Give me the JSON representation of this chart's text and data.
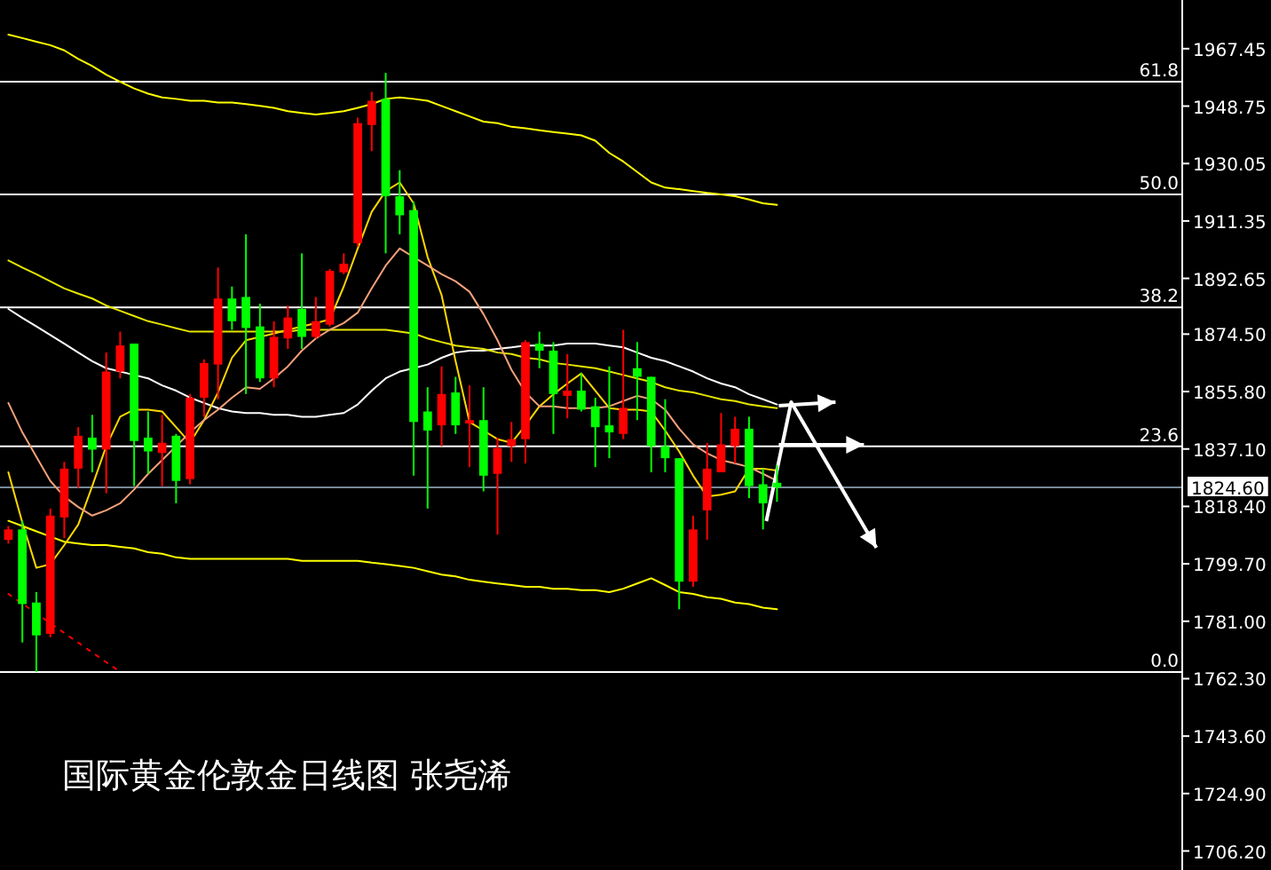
{
  "chart_data": {
    "type": "candlestick",
    "title": "国际黄金伦敦金日线图 张尧浠",
    "categories": [
      null,
      null,
      null,
      null,
      null,
      null,
      null,
      null,
      null,
      null,
      null,
      null,
      null,
      null,
      null,
      null,
      null,
      null,
      null,
      null,
      null,
      null,
      null,
      null,
      null,
      null,
      null,
      null,
      null,
      null,
      null,
      null,
      null,
      null,
      null,
      null,
      null,
      null,
      null,
      null,
      null,
      null,
      null,
      null,
      null,
      null,
      null,
      null,
      null,
      null,
      null,
      null,
      null,
      null,
      null,
      null
    ],
    "ohlc": [
      [
        1807.5,
        1812.0,
        1806.3,
        1810.9
      ],
      [
        1810.9,
        1813.7,
        1774.1,
        1786.6
      ],
      [
        1787.1,
        1790.5,
        1764.5,
        1776.4
      ],
      [
        1776.9,
        1817.7,
        1775.8,
        1815.4
      ],
      [
        1814.8,
        1832.9,
        1808.0,
        1830.7
      ],
      [
        1830.7,
        1844.2,
        1824.4,
        1841.4
      ],
      [
        1840.8,
        1848.2,
        1829.5,
        1836.9
      ],
      [
        1836.9,
        1868.5,
        1822.7,
        1862.3
      ],
      [
        1862.3,
        1875.3,
        1860.1,
        1870.8
      ],
      [
        1871.4,
        1871.4,
        1825.0,
        1839.7
      ],
      [
        1840.8,
        1849.3,
        1829.0,
        1836.3
      ],
      [
        1835.8,
        1848.2,
        1825.0,
        1839.1
      ],
      [
        1841.4,
        1842.0,
        1819.4,
        1826.7
      ],
      [
        1827.3,
        1855.0,
        1825.6,
        1853.8
      ],
      [
        1853.8,
        1866.3,
        1847.6,
        1865.1
      ],
      [
        1864.6,
        1896.2,
        1853.3,
        1886.1
      ],
      [
        1886.1,
        1890.0,
        1875.9,
        1878.7
      ],
      [
        1886.6,
        1907.0,
        1855.0,
        1876.5
      ],
      [
        1877.0,
        1884.4,
        1858.9,
        1860.1
      ],
      [
        1860.1,
        1878.7,
        1857.2,
        1873.6
      ],
      [
        1873.1,
        1883.8,
        1869.7,
        1879.9
      ],
      [
        1882.7,
        1900.8,
        1869.7,
        1873.6
      ],
      [
        1873.6,
        1886.6,
        1873.1,
        1878.7
      ],
      [
        1877.6,
        1895.7,
        1877.0,
        1895.1
      ],
      [
        1894.6,
        1900.8,
        1894.0,
        1897.4
      ],
      [
        1904.1,
        1945.0,
        1903.0,
        1943.2
      ],
      [
        1942.6,
        1953.4,
        1934.1,
        1950.5
      ],
      [
        1951.1,
        1959.6,
        1900.8,
        1919.4
      ],
      [
        1919.4,
        1927.9,
        1907.0,
        1913.2
      ],
      [
        1914.9,
        1917.7,
        1828.4,
        1845.9
      ],
      [
        1849.3,
        1857.2,
        1817.7,
        1843.1
      ],
      [
        1844.8,
        1864.0,
        1838.0,
        1855.0
      ],
      [
        1855.5,
        1860.6,
        1842.0,
        1844.8
      ],
      [
        1845.4,
        1857.8,
        1831.2,
        1846.5
      ],
      [
        1846.5,
        1857.2,
        1823.3,
        1828.4
      ],
      [
        1829.0,
        1840.8,
        1809.2,
        1837.4
      ],
      [
        1838.0,
        1845.9,
        1832.9,
        1840.3
      ],
      [
        1840.3,
        1872.5,
        1832.4,
        1871.9
      ],
      [
        1871.4,
        1875.3,
        1863.4,
        1869.1
      ],
      [
        1869.1,
        1871.9,
        1842.0,
        1855.0
      ],
      [
        1854.4,
        1868.0,
        1847.1,
        1856.1
      ],
      [
        1856.1,
        1861.8,
        1849.3,
        1849.9
      ],
      [
        1851.0,
        1853.8,
        1831.2,
        1844.2
      ],
      [
        1844.8,
        1864.0,
        1834.1,
        1842.5
      ],
      [
        1842.0,
        1875.9,
        1840.3,
        1850.5
      ],
      [
        1863.4,
        1871.9,
        1846.5,
        1860.6
      ],
      [
        1860.6,
        1860.6,
        1829.5,
        1838.0
      ],
      [
        1838.0,
        1853.3,
        1829.5,
        1834.1
      ],
      [
        1834.1,
        1834.1,
        1784.9,
        1793.9
      ],
      [
        1793.9,
        1815.4,
        1792.2,
        1810.9
      ],
      [
        1817.1,
        1839.1,
        1807.5,
        1830.7
      ],
      [
        1829.5,
        1848.8,
        1829.5,
        1838.6
      ],
      [
        1838.0,
        1847.6,
        1832.4,
        1843.7
      ],
      [
        1843.7,
        1847.6,
        1821.1,
        1825.0
      ],
      [
        1825.6,
        1830.7,
        1810.9,
        1819.4
      ],
      [
        1826.1,
        1831.8,
        1819.9,
        1824.6
      ]
    ],
    "colors": [
      "#ff0000",
      "#00ff00",
      "#00ff00",
      "#ff0000",
      "#ff0000",
      "#ff0000",
      "#00ff00",
      "#ff0000",
      "#ff0000",
      "#00ff00",
      "#00ff00",
      "#ff0000",
      "#00ff00",
      "#ff0000",
      "#ff0000",
      "#ff0000",
      "#00ff00",
      "#00ff00",
      "#00ff00",
      "#ff0000",
      "#ff0000",
      "#00ff00",
      "#ff0000",
      "#ff0000",
      "#ff0000",
      "#ff0000",
      "#ff0000",
      "#00ff00",
      "#00ff00",
      "#00ff00",
      "#00ff00",
      "#ff0000",
      "#00ff00",
      "#ff0000",
      "#00ff00",
      "#ff0000",
      "#ff0000",
      "#ff0000",
      "#00ff00",
      "#00ff00",
      "#ff0000",
      "#00ff00",
      "#00ff00",
      "#00ff00",
      "#ff0000",
      "#00ff00",
      "#00ff00",
      "#00ff00",
      "#00ff00",
      "#ff0000",
      "#ff0000",
      "#ff0000",
      "#ff0000",
      "#00ff00",
      "#00ff00",
      "#00ff00"
    ],
    "series": [
      {
        "type": "line",
        "color": "#ffff00",
        "values": [
          1972.0,
          1970.9,
          1969.7,
          1968.6,
          1966.9,
          1964.1,
          1961.8,
          1959.0,
          1956.7,
          1954.5,
          1952.8,
          1951.6,
          1951.1,
          1950.5,
          1950.5,
          1949.9,
          1949.9,
          1949.4,
          1948.8,
          1948.2,
          1947.1,
          1946.5,
          1946.0,
          1946.5,
          1947.1,
          1948.2,
          1949.4,
          1951.1,
          1951.6,
          1951.1,
          1950.5,
          1948.8,
          1947.1,
          1945.4,
          1943.7,
          1943.2,
          1942.0,
          1941.5,
          1940.9,
          1940.3,
          1939.8,
          1939.2,
          1937.5,
          1933.5,
          1930.7,
          1927.3,
          1923.9,
          1922.2,
          1921.7,
          1921.1,
          1920.5,
          1920.0,
          1919.4,
          1918.3,
          1917.1,
          1916.6
        ]
      },
      {
        "type": "line",
        "color": "#ffff00",
        "values": [
          1813.7,
          1812.0,
          1810.3,
          1808.6,
          1806.9,
          1806.3,
          1805.8,
          1805.8,
          1805.2,
          1804.7,
          1803.5,
          1803.0,
          1801.8,
          1801.3,
          1801.3,
          1801.3,
          1801.3,
          1801.3,
          1801.3,
          1801.3,
          1801.3,
          1800.7,
          1800.7,
          1800.7,
          1800.7,
          1800.7,
          1800.1,
          1799.6,
          1799.0,
          1798.4,
          1797.3,
          1796.2,
          1795.6,
          1794.5,
          1793.9,
          1793.3,
          1792.8,
          1792.2,
          1792.2,
          1791.6,
          1791.6,
          1791.1,
          1791.1,
          1790.5,
          1791.6,
          1793.3,
          1795.0,
          1792.8,
          1790.5,
          1789.9,
          1788.8,
          1788.3,
          1787.1,
          1786.6,
          1785.4,
          1784.9
        ]
      },
      {
        "type": "line",
        "color": "#ffffff",
        "values": [
          1882.7,
          1879.8,
          1877.0,
          1874.2,
          1871.4,
          1868.5,
          1865.7,
          1863.4,
          1862.3,
          1861.2,
          1860.1,
          1857.8,
          1856.1,
          1853.8,
          1852.1,
          1850.4,
          1849.3,
          1848.8,
          1848.8,
          1848.2,
          1848.2,
          1847.6,
          1847.6,
          1848.2,
          1848.8,
          1851.6,
          1856.1,
          1860.1,
          1862.3,
          1863.4,
          1864.6,
          1866.8,
          1868.5,
          1869.1,
          1869.1,
          1869.7,
          1870.2,
          1870.8,
          1870.8,
          1870.8,
          1871.4,
          1871.4,
          1871.4,
          1870.8,
          1870.2,
          1868.5,
          1866.8,
          1865.7,
          1864.0,
          1862.3,
          1860.1,
          1858.4,
          1857.2,
          1854.9,
          1853.3,
          1851.6
        ]
      },
      {
        "type": "line",
        "color": "#e6e600",
        "values": [
          1898.5,
          1896.2,
          1894.0,
          1891.7,
          1889.4,
          1887.7,
          1886.1,
          1883.8,
          1882.1,
          1880.4,
          1878.7,
          1877.6,
          1876.4,
          1875.3,
          1875.3,
          1875.3,
          1875.3,
          1875.3,
          1875.3,
          1875.3,
          1875.3,
          1875.9,
          1875.9,
          1875.9,
          1875.9,
          1875.9,
          1875.9,
          1875.9,
          1875.3,
          1874.7,
          1873.1,
          1871.9,
          1870.8,
          1870.2,
          1869.7,
          1868.5,
          1868.0,
          1866.8,
          1866.3,
          1865.1,
          1864.6,
          1864.0,
          1863.4,
          1862.3,
          1861.2,
          1860.1,
          1858.9,
          1857.2,
          1856.1,
          1855.5,
          1854.4,
          1853.3,
          1852.7,
          1851.6,
          1851.0,
          1850.4
        ]
      },
      {
        "type": "line",
        "color": "#ffd700",
        "values": [
          1829.5,
          1813.1,
          1798.4,
          1799.6,
          1805.8,
          1812.5,
          1825.0,
          1838.0,
          1847.6,
          1849.9,
          1849.9,
          1849.3,
          1844.2,
          1839.1,
          1846.5,
          1855.5,
          1866.8,
          1872.5,
          1873.6,
          1874.7,
          1875.9,
          1877.0,
          1878.1,
          1879.3,
          1890.0,
          1902.4,
          1914.3,
          1921.1,
          1923.9,
          1917.1,
          1899.6,
          1887.2,
          1865.7,
          1845.9,
          1843.1,
          1840.3,
          1839.1,
          1844.8,
          1851.0,
          1854.9,
          1858.4,
          1861.7,
          1856.1,
          1850.4,
          1849.9,
          1849.9,
          1849.3,
          1843.1,
          1836.3,
          1828.4,
          1821.6,
          1822.2,
          1823.3,
          1830.7,
          1830.7,
          1830.1
        ]
      },
      {
        "type": "line",
        "color": "#f4a07a",
        "values": [
          1852.1,
          1842.5,
          1834.6,
          1826.7,
          1821.6,
          1818.2,
          1815.4,
          1817.1,
          1819.4,
          1823.9,
          1829.0,
          1833.5,
          1838.0,
          1842.5,
          1846.5,
          1849.9,
          1853.8,
          1857.2,
          1856.7,
          1860.1,
          1864.0,
          1869.1,
          1873.1,
          1875.9,
          1878.1,
          1881.5,
          1889.4,
          1896.8,
          1902.4,
          1899.6,
          1896.8,
          1894.0,
          1891.7,
          1888.3,
          1881.0,
          1872.5,
          1862.9,
          1855.5,
          1851.0,
          1851.0,
          1850.4,
          1850.4,
          1850.4,
          1851.0,
          1852.7,
          1854.4,
          1853.3,
          1849.9,
          1843.7,
          1838.6,
          1835.7,
          1833.5,
          1832.4,
          1831.2,
          1829.0,
          1826.7
        ]
      },
      {
        "type": "line",
        "color": "#ff0000",
        "line_style": "dotted",
        "values": [
          1789.9,
          null,
          null,
          null,
          null,
          null,
          null,
          null,
          1764.5,
          null,
          null,
          null,
          null,
          null,
          null,
          null,
          null,
          null,
          null,
          null,
          null,
          null,
          null,
          null,
          null,
          null,
          null,
          null,
          null,
          null,
          null,
          null,
          null,
          null,
          null,
          null,
          null,
          null,
          null,
          null,
          null,
          null,
          null,
          null,
          null,
          null,
          null,
          null,
          null,
          null,
          null,
          null,
          null,
          null,
          null,
          null
        ]
      }
    ],
    "ylim": [
      1700,
      1983.3
    ],
    "yticks": [
      1967.45,
      1948.75,
      1930.05,
      1911.35,
      1892.65,
      {
        "value": 1874.5,
        "label": "1874.50"
      },
      {
        "value": 1855.8,
        "label": "1855.80"
      },
      {
        "value": 1837.1,
        "label": "1837.10"
      },
      {
        "value": 1818.4,
        "label": "1818.40"
      },
      {
        "value": 1799.7,
        "label": "1799.70"
      },
      {
        "value": 1781,
        "label": "1781.00"
      },
      {
        "value": 1762.3,
        "label": "1762.30"
      },
      {
        "value": 1743.6,
        "label": "1743.60"
      },
      {
        "value": 1724.9,
        "label": "1724.90"
      },
      {
        "value": 1706.2,
        "label": "1706.20"
      }
    ],
    "ref_lines": [
      {
        "axis": "y",
        "value": 1956.7,
        "color": "#ffffff"
      },
      {
        "axis": "y",
        "value": 1920.0,
        "color": "#ffffff"
      },
      {
        "axis": "y",
        "value": 1883.2,
        "color": "#ffffff"
      },
      {
        "axis": "y",
        "value": 1838.0,
        "color": "#ffffff"
      },
      {
        "axis": "y",
        "value": 1764.5,
        "color": "#ffffff"
      },
      {
        "axis": "y",
        "value": 1824.6,
        "label": "1824.60",
        "color": "#778899"
      }
    ],
    "annotations": [
      {
        "text": "61.8",
        "y": 1956.7
      },
      {
        "text": "50.0",
        "y": 1920.0
      },
      {
        "text": "38.2",
        "y": 1883.2
      },
      {
        "text": "23.6",
        "y": 1838.0
      },
      {
        "text": "0.0",
        "y": 1764.5
      }
    ]
  }
}
